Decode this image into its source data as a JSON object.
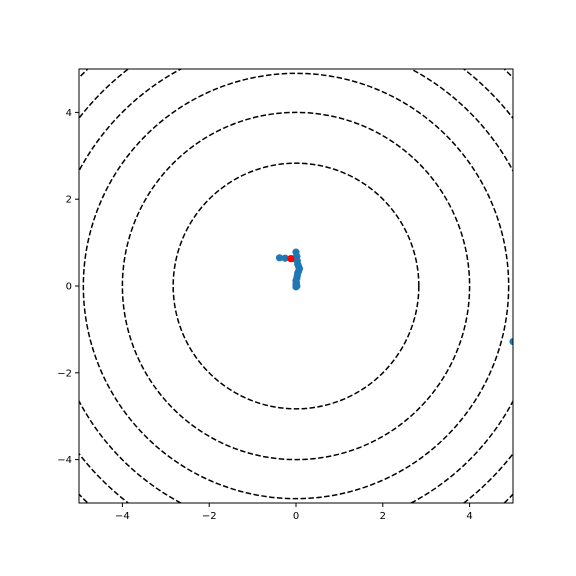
{
  "chart_data": {
    "type": "scatter",
    "title": "",
    "xlabel": "",
    "ylabel": "",
    "xlim": [
      -5,
      5
    ],
    "ylim": [
      -5,
      5
    ],
    "x_ticks": [
      -4,
      -2,
      0,
      2,
      4
    ],
    "y_ticks": [
      -4,
      -2,
      0,
      2,
      4
    ],
    "x_tick_labels": [
      "−4",
      "−2",
      "0",
      "2",
      "4"
    ],
    "y_tick_labels": [
      "−4",
      "−2",
      "0",
      "2",
      "4"
    ],
    "grid": false,
    "contours": {
      "style": "dashed",
      "color": "#000000",
      "center": [
        0,
        0
      ],
      "radii": [
        2.83,
        4.0,
        4.9,
        5.66,
        6.32,
        6.93
      ]
    },
    "series": [
      {
        "color": "#1f77b4",
        "points": [
          [
            -0.38,
            0.65
          ],
          [
            -0.25,
            0.64
          ],
          [
            -0.05,
            0.63
          ],
          [
            0.0,
            0.78
          ],
          [
            0.02,
            0.68
          ],
          [
            0.03,
            0.58
          ],
          [
            0.04,
            0.5
          ],
          [
            0.06,
            0.45
          ],
          [
            0.08,
            0.4
          ],
          [
            0.06,
            0.34
          ],
          [
            0.04,
            0.3
          ],
          [
            0.03,
            0.24
          ],
          [
            0.02,
            0.18
          ],
          [
            0.0,
            0.12
          ],
          [
            0.01,
            0.08
          ],
          [
            0.0,
            0.04
          ],
          [
            0.02,
            0.0
          ],
          [
            0.0,
            -0.02
          ],
          [
            0.01,
            -0.01
          ],
          [
            5.0,
            -1.28
          ]
        ]
      },
      {
        "color": "#ff0000",
        "points": [
          [
            -0.12,
            0.63
          ]
        ]
      }
    ]
  }
}
